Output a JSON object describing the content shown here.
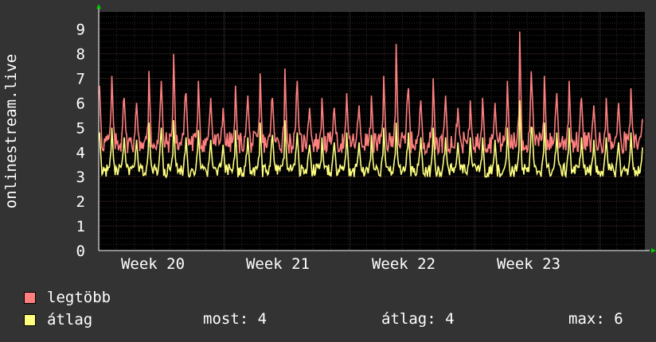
{
  "chart_data": {
    "type": "line",
    "ylabel": "onlinestream.live",
    "ylim": [
      0,
      9.7
    ],
    "yticks": [
      0,
      1,
      2,
      3,
      4,
      5,
      6,
      7,
      8,
      9
    ],
    "x_ticks": [
      "Week 20",
      "Week 21",
      "Week 22",
      "Week 23"
    ],
    "grid": true,
    "colors": {
      "background": "#333333",
      "plot": "#000000",
      "grid": "#3a3a3a",
      "legtobb": "#ff7f7f",
      "atlag": "#ffff7f"
    },
    "series": [
      {
        "name": "legtöbb",
        "color": "#ff7f7f",
        "peaks": [
          6.7,
          7.1,
          6.2,
          6.0,
          7.3,
          6.9,
          8.0,
          6.4,
          6.9,
          6.2,
          5.8,
          6.7,
          6.3,
          7.2,
          6.2,
          7.4,
          6.9,
          5.8,
          6.2,
          5.8,
          6.4,
          5.9,
          6.3,
          7.1,
          8.4,
          6.6,
          6.1,
          7.0,
          6.3,
          5.8,
          6.1,
          6.2,
          6.0,
          6.9,
          8.9,
          6.5,
          7.1,
          6.4,
          6.9,
          6.2,
          5.9,
          6.2,
          6.0,
          6.6
        ]
      },
      {
        "name": "átlag",
        "color": "#ffff7f",
        "peaks": [
          4.8,
          5.0,
          4.6,
          4.5,
          5.2,
          5.0,
          5.3,
          4.6,
          4.9,
          4.5,
          4.3,
          4.9,
          4.6,
          5.2,
          4.7,
          5.3,
          4.8,
          4.3,
          4.6,
          4.4,
          4.8,
          4.4,
          4.7,
          5.0,
          5.2,
          4.8,
          4.6,
          5.0,
          4.6,
          4.4,
          4.6,
          4.6,
          4.5,
          5.0,
          6.1,
          5.0,
          5.2,
          4.8,
          5.0,
          4.6,
          4.5,
          4.6,
          4.4,
          4.8
        ]
      }
    ]
  },
  "legend": {
    "items": [
      {
        "label": "legtöbb",
        "color": "#ff7f7f"
      },
      {
        "label": "átlag",
        "color": "#ffff7f"
      }
    ],
    "stats": {
      "most": "most: 4",
      "atlag": "átlag: 4",
      "max": "max: 6"
    }
  }
}
